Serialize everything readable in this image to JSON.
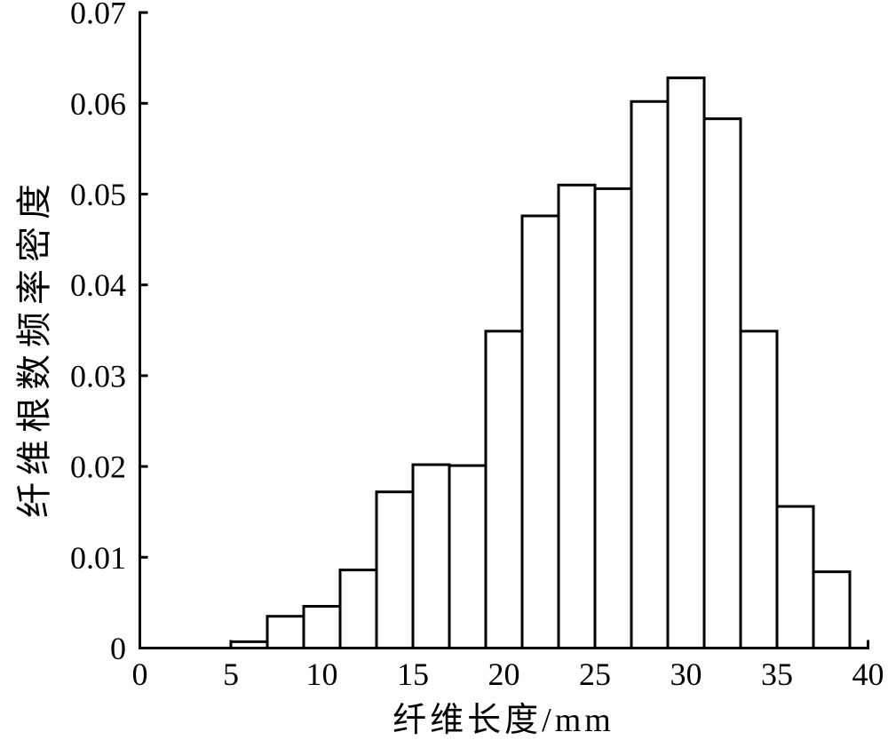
{
  "chart_data": {
    "type": "bar",
    "subtype": "histogram",
    "title": "",
    "xlabel": "纤维长度/mm",
    "ylabel": "纤维根数频率密度",
    "bin_edges_mm": [
      5,
      7,
      9,
      11,
      13,
      15,
      17,
      19,
      21,
      23,
      25,
      27,
      29,
      31,
      33,
      35,
      37,
      39
    ],
    "values": [
      0.0007,
      0.0035,
      0.0046,
      0.0086,
      0.0172,
      0.0202,
      0.0201,
      0.0349,
      0.0476,
      0.051,
      0.0506,
      0.0602,
      0.0628,
      0.0583,
      0.0349,
      0.0156,
      0.0084
    ],
    "xlim": [
      0,
      40
    ],
    "ylim": [
      0,
      0.07
    ],
    "x_ticks": [
      0,
      5,
      10,
      15,
      20,
      25,
      30,
      35,
      40
    ],
    "x_tick_labels": [
      "0",
      "5",
      "10",
      "15",
      "20",
      "25",
      "30",
      "35",
      "40"
    ],
    "y_ticks": [
      0,
      0.01,
      0.02,
      0.03,
      0.04,
      0.05,
      0.06,
      0.07
    ],
    "y_tick_labels": [
      "0",
      "0.01",
      "0.02",
      "0.03",
      "0.04",
      "0.05",
      "0.06",
      "0.07"
    ],
    "grid": false,
    "legend": null,
    "background_color": "#ffffff",
    "bar_fill_color": "#ffffff",
    "line_color": "#000000"
  }
}
